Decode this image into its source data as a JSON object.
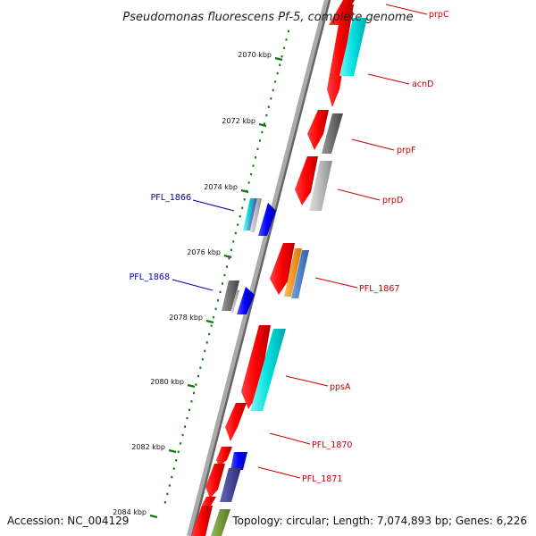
{
  "title": "Pseudomonas fluorescens Pf-5, complete genome",
  "footer": {
    "accession": "Accession: NC_004129",
    "summary": "Topology: circular; Length: 7,074,893 bp; Genes: 6,226"
  },
  "ticks": [
    {
      "label": "2070 kbp"
    },
    {
      "label": "2072 kbp"
    },
    {
      "label": "2074 kbp"
    },
    {
      "label": "2076 kbp"
    },
    {
      "label": "2078 kbp"
    },
    {
      "label": "2080 kbp"
    },
    {
      "label": "2082 kbp"
    },
    {
      "label": "2084 kbp"
    }
  ],
  "forward_labels": [
    "prpC",
    "acnD",
    "prpF",
    "prpD",
    "PFL_1867",
    "ppsA",
    "PFL_1870",
    "PFL_1871"
  ],
  "reverse_labels": [
    "PFL_1866",
    "PFL_1868"
  ],
  "colors": {
    "forward_gene": "#ff0000",
    "reverse_gene": "#0000ff",
    "forward_label": "#cc0000",
    "reverse_label": "#0000aa",
    "cyan_feature": "#00e5e5",
    "gray_feature": "#777777",
    "light_gray_feature": "#bbbbbb",
    "orange_feature": "#ff9900",
    "steelblue_feature": "#4477cc",
    "olive_feature": "#779933",
    "slate_feature": "#444499",
    "tick_green": "#117711",
    "backbone": "#888888"
  }
}
